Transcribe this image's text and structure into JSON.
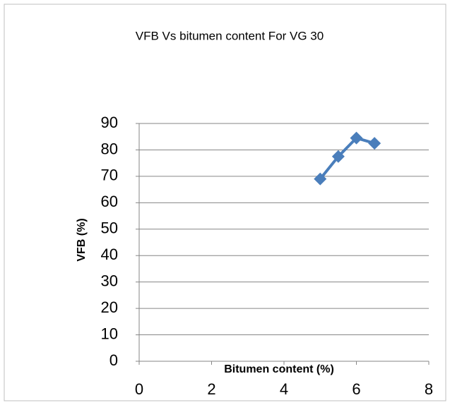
{
  "chart_data": {
    "type": "line",
    "title": "VFB Vs bitumen content  For VG 30",
    "x_label": "Bitumen content (%)",
    "y_label": "VFB (%)",
    "x": [
      5,
      5.5,
      6,
      6.5
    ],
    "series": [
      {
        "name": "VFB",
        "color": "#4a7ebb",
        "values": [
          69,
          77.5,
          84.5,
          82.5
        ]
      }
    ],
    "xlim": [
      0,
      8
    ],
    "xticks": [
      0,
      2,
      4,
      6,
      8
    ],
    "ylim": [
      0,
      90
    ],
    "yticks": [
      0,
      10,
      20,
      30,
      40,
      50,
      60,
      70,
      80,
      90
    ],
    "grid": true
  }
}
